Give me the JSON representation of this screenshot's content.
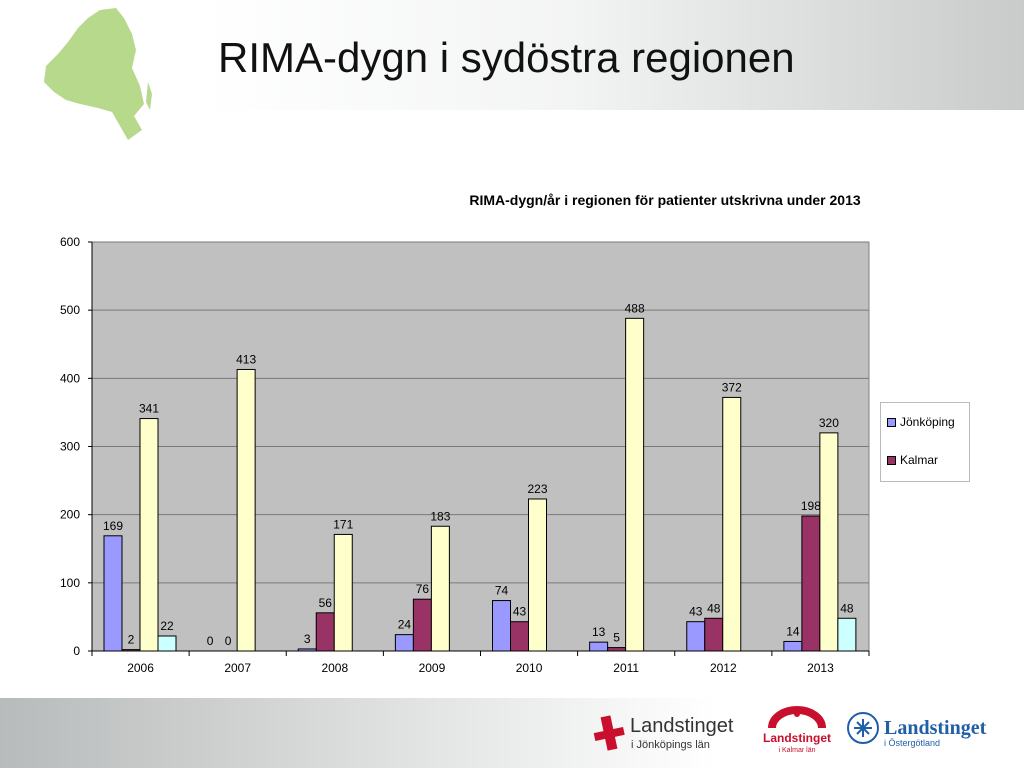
{
  "slide": {
    "title": "RIMA-dygn i sydöstra regionen"
  },
  "logos": {
    "jonkoping_name": "Landstinget",
    "jonkoping_sub": "i Jönköpings län",
    "kalmar_name": "Landstinget",
    "kalmar_sub": "i Kalmar län",
    "ostergotland_name": "Landstinget",
    "ostergotland_sub": "i Östergötland"
  },
  "colors": {
    "jonkoping": "#9999ff",
    "kalmar": "#993366",
    "series3": "#ffffcc",
    "series4": "#ccffff",
    "plot_bg": "#c0c0c0",
    "map_green": "#b7d98c",
    "logo_red": "#c8102e",
    "logo_blue": "#1f5fa8"
  },
  "chart_data": {
    "type": "bar",
    "title": "RIMA-dygn/år i regionen för patienter utskrivna under 2013",
    "categories": [
      "2006",
      "2007",
      "2008",
      "2009",
      "2010",
      "2011",
      "2012",
      "2013"
    ],
    "ylim": [
      0,
      600
    ],
    "yticks": [
      "0",
      "100",
      "200",
      "300",
      "400",
      "500",
      "600"
    ],
    "grid": true,
    "legend_position": "right",
    "series": [
      {
        "name": "Jönköping",
        "values": [
          169,
          0,
          3,
          24,
          74,
          13,
          43,
          14
        ]
      },
      {
        "name": "Kalmar",
        "values": [
          2,
          0,
          56,
          76,
          43,
          5,
          48,
          198
        ]
      },
      {
        "values": [
          341,
          413,
          171,
          183,
          223,
          488,
          372,
          320
        ]
      },
      {
        "values": [
          22,
          null,
          null,
          null,
          null,
          null,
          null,
          48
        ]
      }
    ]
  }
}
